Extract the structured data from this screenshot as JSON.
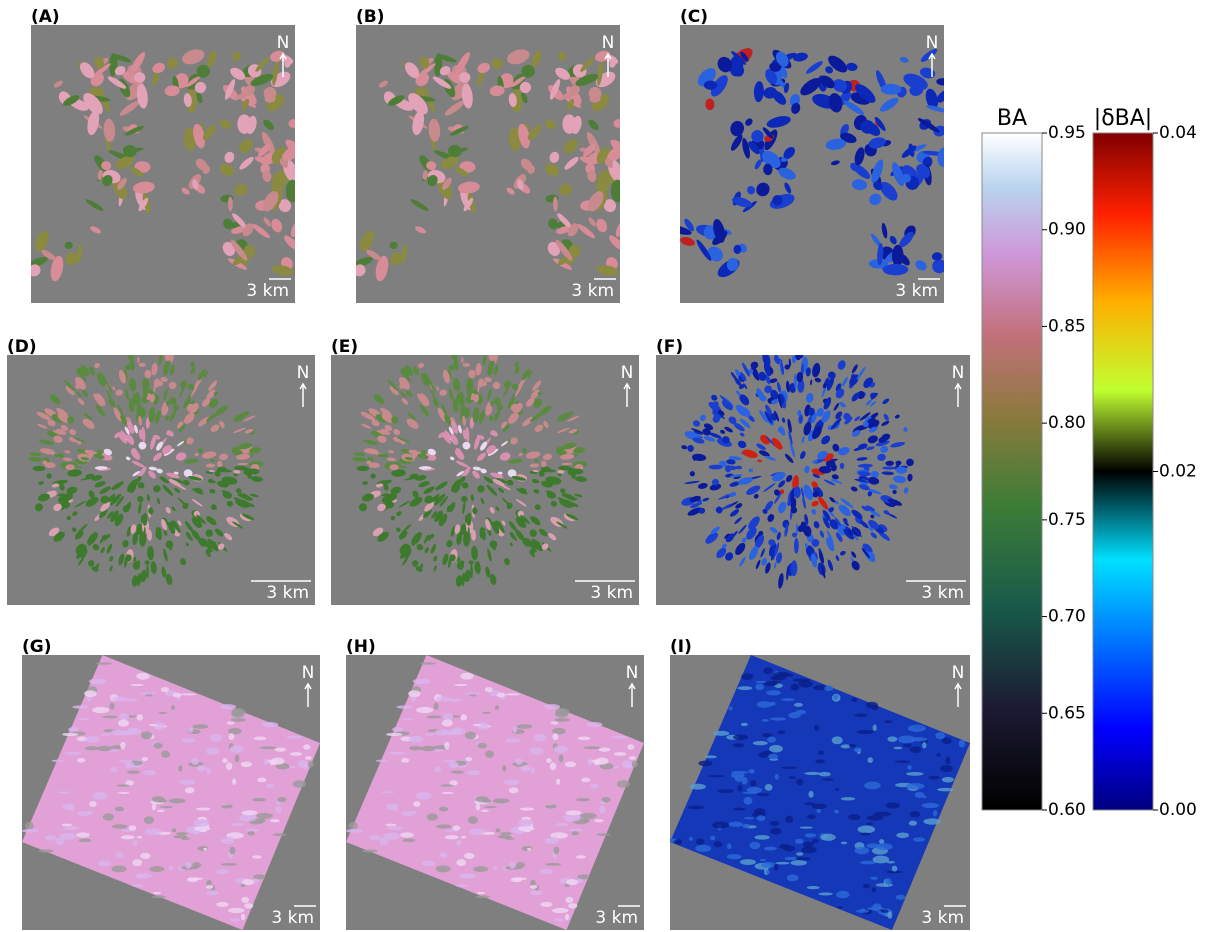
{
  "panels": [
    {
      "label": "(A)",
      "north": "N",
      "scale": "3 km"
    },
    {
      "label": "(B)",
      "north": "N",
      "scale": "3 km"
    },
    {
      "label": "(C)",
      "north": "N",
      "scale": "3 km"
    },
    {
      "label": "(D)",
      "north": "N",
      "scale": "3 km"
    },
    {
      "label": "(E)",
      "north": "N",
      "scale": "3 km"
    },
    {
      "label": "(F)",
      "north": "N",
      "scale": "3 km"
    },
    {
      "label": "(G)",
      "north": "N",
      "scale": "3 km"
    },
    {
      "label": "(H)",
      "north": "N",
      "scale": "3 km"
    },
    {
      "label": "(I)",
      "north": "N",
      "scale": "3 km"
    }
  ],
  "colorbars": [
    {
      "title": "BA",
      "lim": [
        0.6,
        0.95
      ],
      "ticks": [
        {
          "value": 0.6,
          "label": "0.60"
        },
        0.65,
        {
          "value": 0.7,
          "label": "0.70"
        },
        0.75,
        {
          "value": 0.8,
          "label": "0.80"
        },
        0.85,
        {
          "value": 0.9,
          "label": "0.90"
        },
        0.95
      ]
    },
    {
      "title": "|δBA|",
      "lim": [
        0,
        0.04
      ],
      "ticks": [
        {
          "value": 0,
          "label": "0.00"
        },
        {
          "value": 0.02,
          "label": "0.02"
        },
        {
          "value": 0.04,
          "label": "0.04"
        }
      ]
    }
  ]
}
